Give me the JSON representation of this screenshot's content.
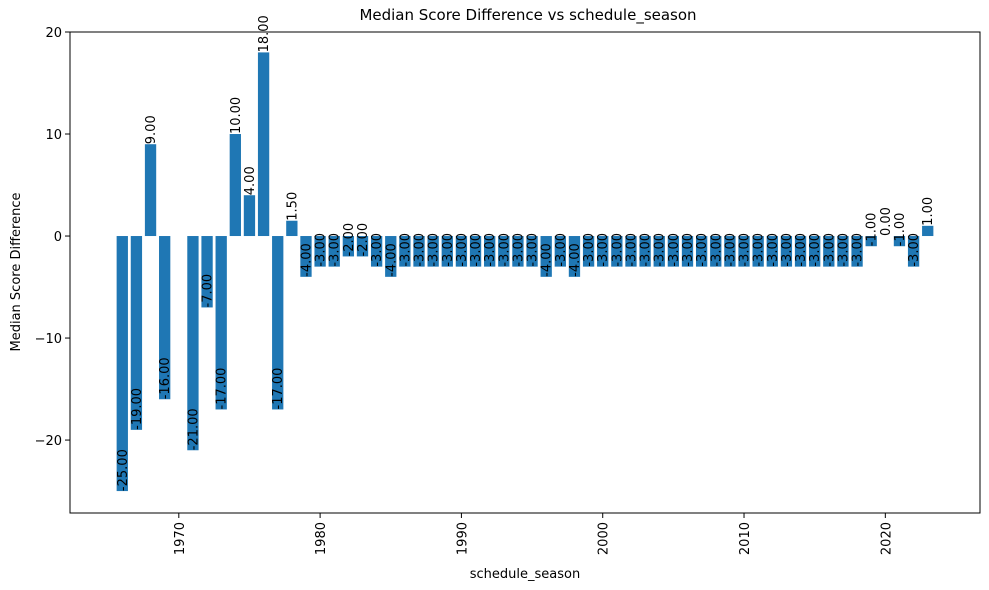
{
  "chart_data": {
    "type": "bar",
    "title": "Median Score Difference vs schedule_season",
    "xlabel": "schedule_season",
    "ylabel": "Median Score Difference",
    "xlim": [
      1962.3,
      2026.7
    ],
    "ylim": [
      -27.15,
      20
    ],
    "xticks": [
      1970,
      1980,
      1990,
      2000,
      2010,
      2020
    ],
    "xtick_labels": [
      "1970",
      "1980",
      "1990",
      "2000",
      "2010",
      "2020"
    ],
    "yticks": [
      -20,
      -10,
      0,
      10,
      20
    ],
    "ytick_labels": [
      "−20",
      "−10",
      "0",
      "10",
      "20"
    ],
    "bar_color": "#1f77b4",
    "grid": false,
    "x": [
      1966,
      1967,
      1968,
      1969,
      1971,
      1972,
      1973,
      1974,
      1975,
      1976,
      1977,
      1978,
      1979,
      1980,
      1981,
      1982,
      1983,
      1984,
      1985,
      1986,
      1987,
      1988,
      1989,
      1990,
      1991,
      1992,
      1993,
      1994,
      1995,
      1996,
      1997,
      1998,
      1999,
      2000,
      2001,
      2002,
      2003,
      2004,
      2005,
      2006,
      2007,
      2008,
      2009,
      2010,
      2011,
      2012,
      2013,
      2014,
      2015,
      2016,
      2017,
      2018,
      2019,
      2020,
      2021,
      2022,
      2023
    ],
    "values": [
      -25,
      -19,
      9,
      -16,
      -21,
      -7,
      -17,
      10,
      4,
      18,
      -17,
      1.5,
      -4,
      -3,
      -3,
      -2,
      -2,
      -3,
      -4,
      -3,
      -3,
      -3,
      -3,
      -3,
      -3,
      -3,
      -3,
      -3,
      -3,
      -4,
      -3,
      -4,
      -3,
      -3,
      -3,
      -3,
      -3,
      -3,
      -3,
      -3,
      -3,
      -3,
      -3,
      -3,
      -3,
      -3,
      -3,
      -3,
      -3,
      -3,
      -3,
      -3,
      -1,
      0,
      -1,
      -3,
      1
    ],
    "labels": [
      "-25.00",
      "-19.00",
      "9.00",
      "-16.00",
      "-21.00",
      "-7.00",
      "-17.00",
      "10.00",
      "4.00",
      "18.00",
      "-17.00",
      "1.50",
      "-4.00",
      "-3.00",
      "-3.00",
      "-2.00",
      "-2.00",
      "-3.00",
      "-4.00",
      "-3.00",
      "-3.00",
      "-3.00",
      "-3.00",
      "-3.00",
      "-3.00",
      "-3.00",
      "-3.00",
      "-3.00",
      "-3.00",
      "-4.00",
      "-3.00",
      "-4.00",
      "-3.00",
      "-3.00",
      "-3.00",
      "-3.00",
      "-3.00",
      "-3.00",
      "-3.00",
      "-3.00",
      "-3.00",
      "-3.00",
      "-3.00",
      "-3.00",
      "-3.00",
      "-3.00",
      "-3.00",
      "-3.00",
      "-3.00",
      "-3.00",
      "-3.00",
      "-3.00",
      "-1.00",
      "0.00",
      "-1.00",
      "-3.00",
      "1.00"
    ]
  }
}
